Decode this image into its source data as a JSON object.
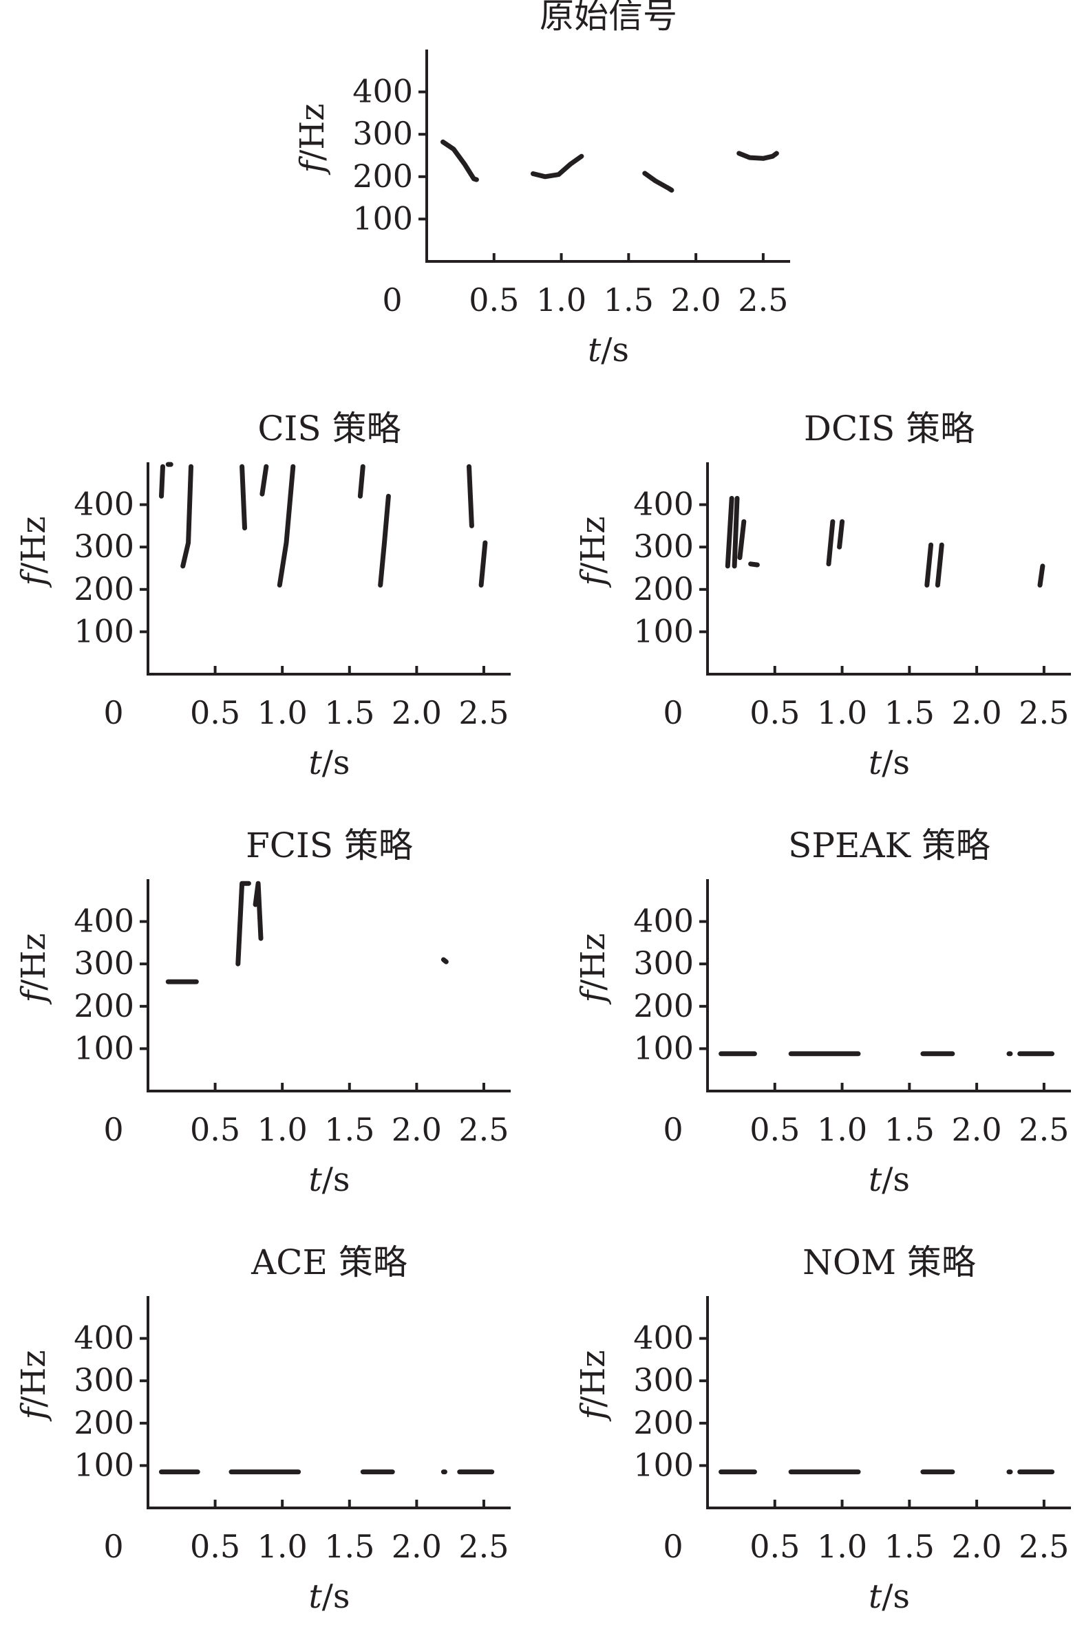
{
  "chart_data": [
    {
      "id": "original",
      "type": "line",
      "title": "原始信号",
      "ylabel_var": "f",
      "ylabel_unit": "/Hz",
      "xlabel_var": "t",
      "xlabel_unit": "/s",
      "x_tick_labels": [
        "0",
        "0.5",
        "1.0",
        "1.5",
        "2.0",
        "2.5"
      ],
      "y_tick_labels": [
        "100",
        "200",
        "300",
        "400"
      ],
      "xlim": [
        0,
        2.7
      ],
      "ylim": [
        0,
        500
      ],
      "series": [
        {
          "points": [
            [
              0.12,
              282
            ],
            [
              0.2,
              265
            ],
            [
              0.28,
              230
            ],
            [
              0.35,
              195
            ],
            [
              0.37,
              193
            ]
          ]
        },
        {
          "points": [
            [
              0.79,
              207
            ],
            [
              0.88,
              200
            ],
            [
              0.98,
              205
            ],
            [
              1.07,
              230
            ],
            [
              1.15,
              248
            ]
          ]
        },
        {
          "points": [
            [
              1.62,
              208
            ],
            [
              1.7,
              190
            ],
            [
              1.8,
              172
            ],
            [
              1.82,
              168
            ]
          ]
        },
        {
          "points": [
            [
              2.32,
              255
            ],
            [
              2.4,
              245
            ],
            [
              2.5,
              243
            ],
            [
              2.57,
              248
            ],
            [
              2.6,
              255
            ]
          ]
        }
      ]
    },
    {
      "id": "cis",
      "type": "line",
      "title": "CIS 策略",
      "ylabel_var": "f",
      "ylabel_unit": "/Hz",
      "xlabel_var": "t",
      "xlabel_unit": "/s",
      "x_tick_labels": [
        "0",
        "0.5",
        "1.0",
        "1.5",
        "2.0",
        "2.5"
      ],
      "y_tick_labels": [
        "100",
        "200",
        "300",
        "400"
      ],
      "xlim": [
        0,
        2.7
      ],
      "ylim": [
        0,
        500
      ],
      "series": [
        {
          "points": [
            [
              0.1,
              420
            ],
            [
              0.11,
              490
            ]
          ]
        },
        {
          "points": [
            [
              0.15,
              495
            ],
            [
              0.17,
              495
            ]
          ]
        },
        {
          "points": [
            [
              0.26,
              255
            ],
            [
              0.3,
              310
            ],
            [
              0.32,
              490
            ]
          ]
        },
        {
          "points": [
            [
              0.7,
              490
            ],
            [
              0.72,
              345
            ]
          ]
        },
        {
          "points": [
            [
              0.85,
              425
            ],
            [
              0.88,
              490
            ]
          ]
        },
        {
          "points": [
            [
              0.98,
              210
            ],
            [
              1.03,
              310
            ],
            [
              1.08,
              490
            ]
          ]
        },
        {
          "points": [
            [
              1.58,
              420
            ],
            [
              1.6,
              490
            ]
          ]
        },
        {
          "points": [
            [
              1.73,
              210
            ],
            [
              1.76,
              310
            ],
            [
              1.79,
              420
            ]
          ]
        },
        {
          "points": [
            [
              2.39,
              490
            ],
            [
              2.41,
              350
            ]
          ]
        },
        {
          "points": [
            [
              2.48,
              210
            ],
            [
              2.51,
              310
            ]
          ]
        }
      ]
    },
    {
      "id": "dcis",
      "type": "line",
      "title": "DCIS 策略",
      "ylabel_var": "f",
      "ylabel_unit": "/Hz",
      "xlabel_var": "t",
      "xlabel_unit": "/s",
      "x_tick_labels": [
        "0",
        "0.5",
        "1.0",
        "1.5",
        "2.0",
        "2.5"
      ],
      "y_tick_labels": [
        "100",
        "200",
        "300",
        "400"
      ],
      "xlim": [
        0,
        2.7
      ],
      "ylim": [
        0,
        500
      ],
      "series": [
        {
          "points": [
            [
              0.15,
              255
            ],
            [
              0.18,
              415
            ]
          ]
        },
        {
          "points": [
            [
              0.2,
              255
            ],
            [
              0.22,
              415
            ]
          ]
        },
        {
          "points": [
            [
              0.24,
              275
            ],
            [
              0.27,
              360
            ]
          ]
        },
        {
          "points": [
            [
              0.32,
              260
            ],
            [
              0.37,
              258
            ]
          ]
        },
        {
          "points": [
            [
              0.9,
              260
            ],
            [
              0.93,
              360
            ]
          ]
        },
        {
          "points": [
            [
              0.98,
              300
            ],
            [
              1.0,
              360
            ]
          ]
        },
        {
          "points": [
            [
              1.63,
              210
            ],
            [
              1.66,
              305
            ]
          ]
        },
        {
          "points": [
            [
              1.71,
              210
            ],
            [
              1.74,
              305
            ]
          ]
        },
        {
          "points": [
            [
              2.47,
              210
            ],
            [
              2.49,
              255
            ]
          ]
        }
      ]
    },
    {
      "id": "fcis",
      "type": "line",
      "title": "FCIS 策略",
      "ylabel_var": "f",
      "ylabel_unit": "/Hz",
      "xlabel_var": "t",
      "xlabel_unit": "/s",
      "x_tick_labels": [
        "0",
        "0.5",
        "1.0",
        "1.5",
        "2.0",
        "2.5"
      ],
      "y_tick_labels": [
        "100",
        "200",
        "300",
        "400"
      ],
      "xlim": [
        0,
        2.7
      ],
      "ylim": [
        0,
        500
      ],
      "series": [
        {
          "points": [
            [
              0.15,
              258
            ],
            [
              0.36,
              258
            ]
          ]
        },
        {
          "points": [
            [
              0.67,
              300
            ],
            [
              0.7,
              490
            ],
            [
              0.75,
              490
            ]
          ]
        },
        {
          "points": [
            [
              0.8,
              440
            ],
            [
              0.82,
              490
            ],
            [
              0.84,
              360
            ]
          ]
        },
        {
          "points": [
            [
              2.2,
              310
            ],
            [
              2.22,
              305
            ]
          ]
        }
      ]
    },
    {
      "id": "speak",
      "type": "line",
      "title": "SPEAK 策略",
      "ylabel_var": "f",
      "ylabel_unit": "/Hz",
      "xlabel_var": "t",
      "xlabel_unit": "/s",
      "x_tick_labels": [
        "0",
        "0.5",
        "1.0",
        "1.5",
        "2.0",
        "2.5"
      ],
      "y_tick_labels": [
        "100",
        "200",
        "300",
        "400"
      ],
      "xlim": [
        0,
        2.7
      ],
      "ylim": [
        0,
        500
      ],
      "series": [
        {
          "points": [
            [
              0.1,
              88
            ],
            [
              0.35,
              88
            ]
          ]
        },
        {
          "points": [
            [
              0.62,
              88
            ],
            [
              1.12,
              88
            ]
          ]
        },
        {
          "points": [
            [
              1.6,
              88
            ],
            [
              1.82,
              88
            ]
          ]
        },
        {
          "points": [
            [
              2.24,
              88
            ],
            [
              2.25,
              88
            ]
          ]
        },
        {
          "points": [
            [
              2.32,
              88
            ],
            [
              2.56,
              88
            ]
          ]
        }
      ]
    },
    {
      "id": "ace",
      "type": "line",
      "title": "ACE 策略",
      "ylabel_var": "f",
      "ylabel_unit": "/Hz",
      "xlabel_var": "t",
      "xlabel_unit": "/s",
      "x_tick_labels": [
        "0",
        "0.5",
        "1.0",
        "1.5",
        "2.0",
        "2.5"
      ],
      "y_tick_labels": [
        "100",
        "200",
        "300",
        "400"
      ],
      "xlim": [
        0,
        2.7
      ],
      "ylim": [
        0,
        500
      ],
      "series": [
        {
          "points": [
            [
              0.1,
              85
            ],
            [
              0.37,
              85
            ]
          ]
        },
        {
          "points": [
            [
              0.62,
              85
            ],
            [
              1.12,
              85
            ]
          ]
        },
        {
          "points": [
            [
              1.6,
              85
            ],
            [
              1.82,
              85
            ]
          ]
        },
        {
          "points": [
            [
              2.2,
              85
            ],
            [
              2.21,
              85
            ]
          ]
        },
        {
          "points": [
            [
              2.32,
              85
            ],
            [
              2.56,
              85
            ]
          ]
        }
      ]
    },
    {
      "id": "nom",
      "type": "line",
      "title": "NOM 策略",
      "ylabel_var": "f",
      "ylabel_unit": "/Hz",
      "xlabel_var": "t",
      "xlabel_unit": "/s",
      "x_tick_labels": [
        "0",
        "0.5",
        "1.0",
        "1.5",
        "2.0",
        "2.5"
      ],
      "y_tick_labels": [
        "100",
        "200",
        "300",
        "400"
      ],
      "xlim": [
        0,
        2.7
      ],
      "ylim": [
        0,
        500
      ],
      "series": [
        {
          "points": [
            [
              0.1,
              85
            ],
            [
              0.35,
              85
            ]
          ]
        },
        {
          "points": [
            [
              0.62,
              85
            ],
            [
              1.12,
              85
            ]
          ]
        },
        {
          "points": [
            [
              1.6,
              85
            ],
            [
              1.82,
              85
            ]
          ]
        },
        {
          "points": [
            [
              2.24,
              85
            ],
            [
              2.25,
              85
            ]
          ]
        },
        {
          "points": [
            [
              2.32,
              85
            ],
            [
              2.56,
              85
            ]
          ]
        }
      ]
    }
  ]
}
